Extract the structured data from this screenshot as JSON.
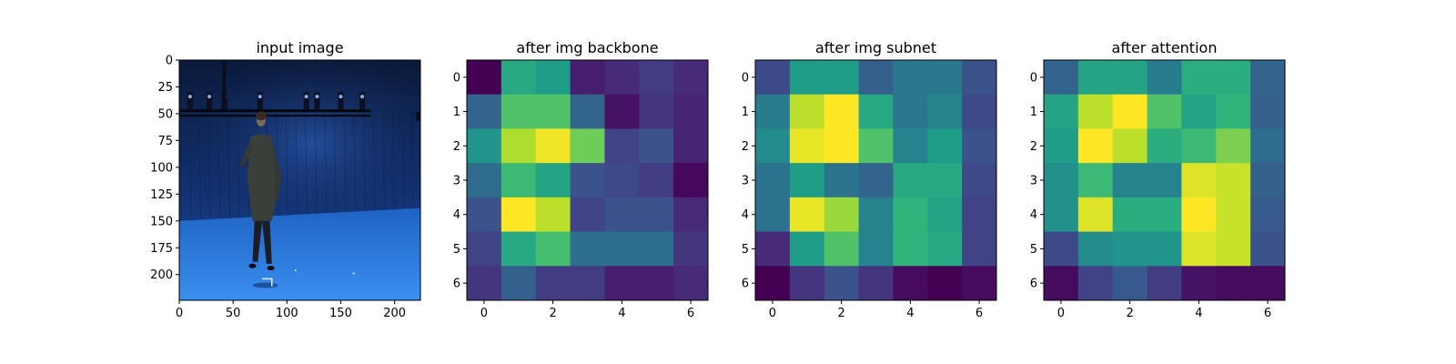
{
  "chart_data": [
    {
      "type": "image",
      "title": "input image",
      "xticks": [
        0,
        50,
        100,
        150,
        200
      ],
      "yticks": [
        0,
        25,
        50,
        75,
        100,
        125,
        150,
        175,
        200
      ],
      "xlim": [
        0,
        224
      ],
      "ylim": [
        224,
        0
      ],
      "image_content": "person standing in blue motion-capture studio"
    },
    {
      "type": "heatmap",
      "title": "after img backbone",
      "xticks": [
        0,
        2,
        4,
        6
      ],
      "yticks": [
        0,
        1,
        2,
        3,
        4,
        5,
        6
      ],
      "colormap": "viridis",
      "values": [
        [
          0.0,
          0.6,
          0.55,
          0.08,
          0.12,
          0.18,
          0.12
        ],
        [
          0.32,
          0.72,
          0.72,
          0.32,
          0.05,
          0.15,
          0.1
        ],
        [
          0.52,
          0.88,
          0.98,
          0.78,
          0.2,
          0.25,
          0.1
        ],
        [
          0.35,
          0.68,
          0.58,
          0.25,
          0.22,
          0.18,
          0.02
        ],
        [
          0.25,
          1.0,
          0.9,
          0.2,
          0.25,
          0.25,
          0.12
        ],
        [
          0.2,
          0.6,
          0.7,
          0.36,
          0.36,
          0.36,
          0.15
        ],
        [
          0.15,
          0.3,
          0.18,
          0.18,
          0.08,
          0.08,
          0.12
        ]
      ]
    },
    {
      "type": "heatmap",
      "title": "after img subnet",
      "xticks": [
        0,
        2,
        4,
        6
      ],
      "yticks": [
        0,
        1,
        2,
        3,
        4,
        5,
        6
      ],
      "colormap": "viridis",
      "values": [
        [
          0.22,
          0.55,
          0.55,
          0.3,
          0.4,
          0.4,
          0.25
        ],
        [
          0.42,
          0.9,
          1.0,
          0.6,
          0.4,
          0.45,
          0.22
        ],
        [
          0.48,
          0.97,
          1.0,
          0.72,
          0.45,
          0.55,
          0.25
        ],
        [
          0.38,
          0.55,
          0.38,
          0.32,
          0.6,
          0.6,
          0.22
        ],
        [
          0.38,
          0.97,
          0.85,
          0.45,
          0.65,
          0.58,
          0.2
        ],
        [
          0.12,
          0.55,
          0.72,
          0.45,
          0.65,
          0.6,
          0.2
        ],
        [
          0.0,
          0.15,
          0.25,
          0.15,
          0.03,
          0.0,
          0.03
        ]
      ]
    },
    {
      "type": "heatmap",
      "title": "after attention",
      "xticks": [
        0,
        2,
        4,
        6
      ],
      "yticks": [
        0,
        1,
        2,
        3,
        4,
        5,
        6
      ],
      "colormap": "viridis",
      "values": [
        [
          0.32,
          0.58,
          0.58,
          0.42,
          0.62,
          0.62,
          0.32
        ],
        [
          0.58,
          0.9,
          1.0,
          0.72,
          0.58,
          0.65,
          0.3
        ],
        [
          0.55,
          1.0,
          0.9,
          0.62,
          0.68,
          0.8,
          0.35
        ],
        [
          0.5,
          0.68,
          0.45,
          0.45,
          0.95,
          0.92,
          0.3
        ],
        [
          0.5,
          0.95,
          0.62,
          0.62,
          1.0,
          0.92,
          0.28
        ],
        [
          0.22,
          0.48,
          0.52,
          0.52,
          0.95,
          0.92,
          0.25
        ],
        [
          0.03,
          0.2,
          0.28,
          0.18,
          0.05,
          0.03,
          0.03
        ]
      ]
    }
  ]
}
